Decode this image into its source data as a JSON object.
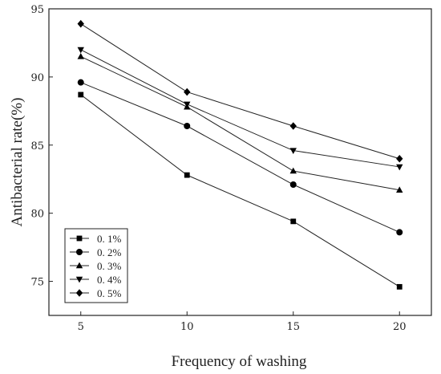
{
  "chart_data": {
    "type": "line",
    "title": "",
    "xlabel": "Frequency of washing",
    "ylabel": "Antibacterial rate(%)",
    "x": [
      5,
      10,
      15,
      20
    ],
    "xlim": [
      3.5,
      21.5
    ],
    "ylim": [
      72.5,
      95
    ],
    "xticks": [
      "5",
      "10",
      "15",
      "20"
    ],
    "yticks": [
      "75",
      "80",
      "85",
      "90",
      "95"
    ],
    "xtick_values": [
      5,
      10,
      15,
      20
    ],
    "ytick_values": [
      75,
      80,
      85,
      90,
      95
    ],
    "grid": false,
    "legend_position": "bottom-left",
    "series": [
      {
        "name": "0. 1%",
        "marker": "square",
        "values": [
          88.7,
          82.8,
          79.4,
          74.6
        ]
      },
      {
        "name": "0. 2%",
        "marker": "circle",
        "values": [
          89.6,
          86.4,
          82.1,
          78.6
        ]
      },
      {
        "name": "0. 3%",
        "marker": "triangle-up",
        "values": [
          91.5,
          87.8,
          83.1,
          81.7
        ]
      },
      {
        "name": "0. 4%",
        "marker": "triangle-down",
        "values": [
          92.0,
          88.0,
          84.6,
          83.4
        ]
      },
      {
        "name": "0. 5%",
        "marker": "diamond",
        "values": [
          93.9,
          88.9,
          86.4,
          84.0
        ]
      }
    ],
    "colors": {
      "line": "#222222",
      "marker": "#000000",
      "axis": "#222222"
    }
  }
}
